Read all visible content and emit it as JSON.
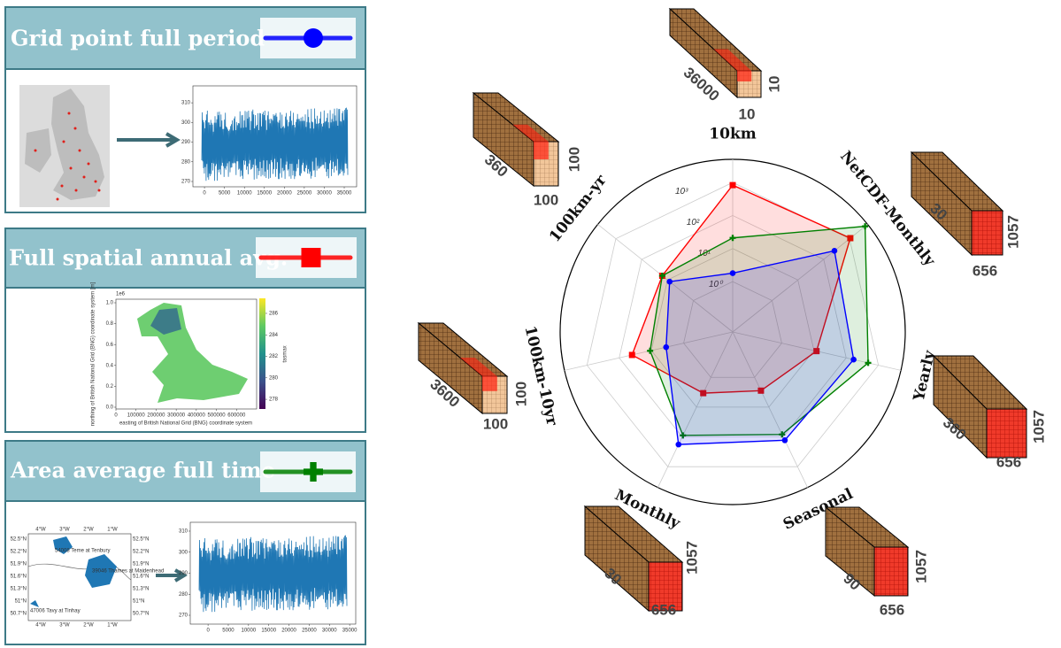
{
  "panels": [
    {
      "title": "Grid point full period",
      "color": "#0000ff",
      "marker": "circle"
    },
    {
      "title": "Full spatial annual avg.",
      "color": "#ff0000",
      "marker": "square"
    },
    {
      "title": "Area average full time",
      "color": "#008000",
      "marker": "plus"
    }
  ],
  "timeseries_1": {
    "xlim": [
      -2900,
      38100
    ],
    "ylim": [
      267.3,
      318.6
    ],
    "xticks": [
      0,
      5000,
      10000,
      15000,
      20000,
      25000,
      30000,
      35000
    ],
    "yticks": [
      270,
      280,
      290,
      300,
      310
    ]
  },
  "spatial_map": {
    "exponent": "1e6",
    "ylabel": "northing of British National Grid (BNG) coordinate system [m]",
    "xlabel": "easting of British National Grid (BNG) coordinate system",
    "xlim": [
      0,
      700000
    ],
    "ylim": [
      -0.017,
      1.034
    ],
    "xticks": [
      0,
      100000,
      200000,
      300000,
      400000,
      500000,
      600000
    ],
    "yticks": [
      {
        "value": 0,
        "label": "0.0"
      },
      {
        "value": 0.2,
        "label": "0.2"
      },
      {
        "value": 0.4,
        "label": "0.4"
      },
      {
        "value": 0.6,
        "label": "0.6"
      },
      {
        "value": 0.8,
        "label": "0.8"
      },
      {
        "value": 1.0,
        "label": "1.0"
      }
    ],
    "colorbar_label": "tasmax",
    "colorbar_lim": [
      277.1,
      287.4
    ],
    "colorbar_ticks": [
      278,
      280,
      282,
      284,
      286
    ]
  },
  "catchment_map": {
    "lon": [
      "4°W",
      "3°W",
      "2°W",
      "1°W"
    ],
    "lat": [
      "52.5°N",
      "52.2°N",
      "51.9°N",
      "51.6°N",
      "51.3°N",
      "51°N",
      "50.7°N"
    ],
    "sites": [
      "54008 Teme at Tenbury",
      "39046 Thames at Maidenhead",
      "47006 Tavy at Tinhay"
    ]
  },
  "timeseries_3": {
    "xlim": [
      -4400,
      36500
    ],
    "ylim": [
      265.8,
      314.2
    ],
    "xticks": [
      0,
      5000,
      10000,
      15000,
      20000,
      25000,
      30000,
      35000
    ],
    "yticks": [
      270,
      280,
      290,
      300,
      310
    ]
  },
  "chart_data": {
    "type": "radar",
    "categories": [
      "10km",
      "NetCDF-Monthly",
      "Yearly",
      "Seasonal",
      "Monthly",
      "100km-10yr",
      "100km-yr"
    ],
    "rscale": "log",
    "rlim": [
      0.03,
      5000
    ],
    "rticks": [
      {
        "value": 1,
        "label": "10⁰"
      },
      {
        "value": 10,
        "label": "10¹"
      },
      {
        "value": 100,
        "label": "10²"
      },
      {
        "value": 1000,
        "label": "10³"
      }
    ],
    "series": [
      {
        "color": "#ff0000",
        "marker": "square",
        "values": [
          830,
          1070,
          12,
          2.8,
          3.4,
          40,
          16
        ]
      },
      {
        "color": "#008000",
        "marker": "plus",
        "values": [
          21,
          4000,
          480,
          83,
          89,
          11,
          16
        ]
      },
      {
        "color": "#0000ff",
        "marker": "circle",
        "values": [
          1.8,
          260,
          170,
          130,
          180,
          3.5,
          8.3
        ]
      }
    ],
    "cubes": [
      {
        "labels": [
          "36000",
          "10",
          "10"
        ]
      },
      {
        "labels": [
          "30",
          "656",
          "1057"
        ]
      },
      {
        "labels": [
          "360",
          "656",
          "1057"
        ]
      },
      {
        "labels": [
          "90",
          "656",
          "1057"
        ]
      },
      {
        "labels": [
          "30",
          "656",
          "1057"
        ]
      },
      {
        "labels": [
          "3600",
          "100",
          "100"
        ]
      },
      {
        "labels": [
          "360",
          "100",
          "100"
        ]
      }
    ]
  }
}
